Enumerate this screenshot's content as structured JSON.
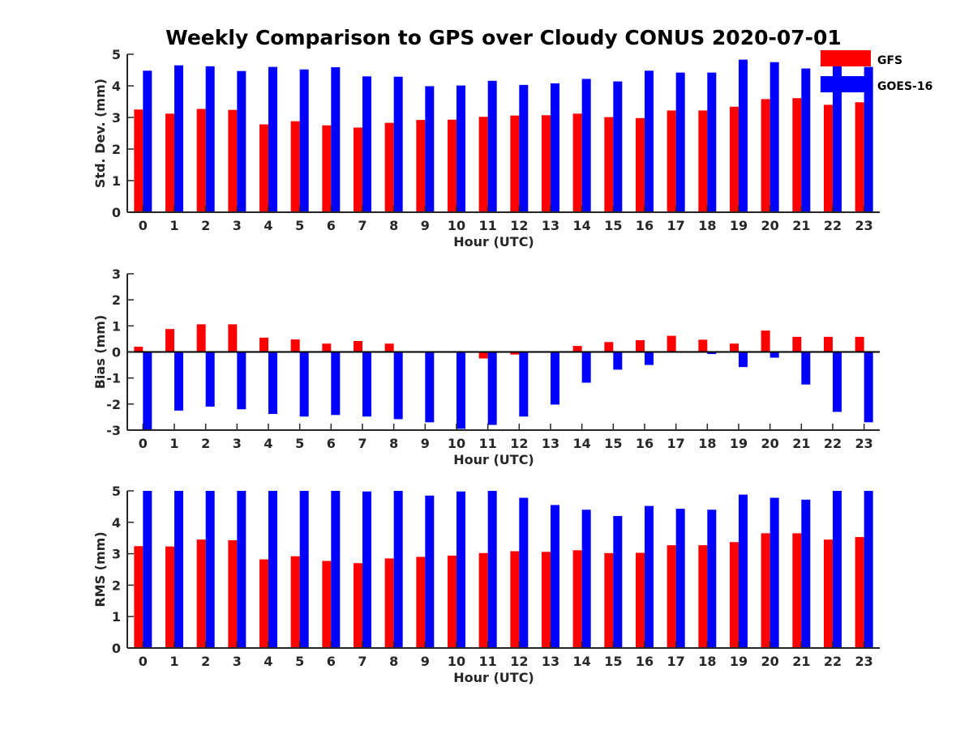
{
  "chart_data": {
    "type": "bar",
    "title": "Weekly Comparison to GPS over Cloudy CONUS 2020-07-01",
    "legend": {
      "placement": "top-right",
      "entries": [
        {
          "label": "GFS",
          "color": "#ff0000"
        },
        {
          "label": "GOES-16",
          "color": "#0000ff"
        }
      ]
    },
    "categories": [
      "0",
      "1",
      "2",
      "3",
      "4",
      "5",
      "6",
      "7",
      "8",
      "9",
      "10",
      "11",
      "12",
      "13",
      "14",
      "15",
      "16",
      "17",
      "18",
      "19",
      "20",
      "21",
      "22",
      "23"
    ],
    "panels": [
      {
        "xlabel": "Hour (UTC)",
        "ylabel": "Std. Dev. (mm)",
        "ylim": [
          0,
          5
        ],
        "yticks": [
          "0",
          "1",
          "2",
          "3",
          "4",
          "5"
        ],
        "series": [
          {
            "name": "GFS",
            "color": "#ff0000",
            "values": [
              3.25,
              3.12,
              3.27,
              3.24,
              2.78,
              2.88,
              2.75,
              2.68,
              2.83,
              2.92,
              2.93,
              3.02,
              3.06,
              3.07,
              3.12,
              3.01,
              2.98,
              3.22,
              3.22,
              3.34,
              3.58,
              3.61,
              3.4,
              3.48
            ]
          },
          {
            "name": "GOES-16",
            "color": "#0000ff",
            "values": [
              4.48,
              4.65,
              4.62,
              4.47,
              4.6,
              4.52,
              4.59,
              4.3,
              4.29,
              3.99,
              4.01,
              4.16,
              4.03,
              4.08,
              4.22,
              4.14,
              4.48,
              4.42,
              4.42,
              4.83,
              4.75,
              4.55,
              4.63,
              4.6
            ]
          }
        ]
      },
      {
        "xlabel": "Hour (UTC)",
        "ylabel": "Bias (mm)",
        "ylim": [
          -3,
          3
        ],
        "yticks": [
          "-3",
          "-2",
          "-1",
          "0",
          "1",
          "2",
          "3"
        ],
        "series": [
          {
            "name": "GFS",
            "color": "#ff0000",
            "values": [
              0.2,
              0.88,
              1.06,
              1.06,
              0.55,
              0.48,
              0.32,
              0.42,
              0.32,
              0.03,
              -0.03,
              -0.25,
              -0.1,
              0.03,
              0.23,
              0.38,
              0.45,
              0.62,
              0.47,
              0.32,
              0.82,
              0.58,
              0.58,
              0.58
            ]
          },
          {
            "name": "GOES-16",
            "color": "#0000ff",
            "values": [
              -3.0,
              -2.25,
              -2.1,
              -2.2,
              -2.38,
              -2.48,
              -2.42,
              -2.48,
              -2.58,
              -2.7,
              -2.95,
              -2.8,
              -2.48,
              -2.02,
              -1.18,
              -0.68,
              -0.5,
              0.0,
              -0.08,
              -0.58,
              -0.22,
              -1.25,
              -2.3,
              -2.7
            ]
          }
        ]
      },
      {
        "xlabel": "Hour (UTC)",
        "ylabel": "RMS (mm)",
        "ylim": [
          0,
          5
        ],
        "yticks": [
          "0",
          "1",
          "2",
          "3",
          "4",
          "5"
        ],
        "series": [
          {
            "name": "GFS",
            "color": "#ff0000",
            "values": [
              3.24,
              3.23,
              3.45,
              3.43,
              2.82,
              2.92,
              2.77,
              2.7,
              2.85,
              2.9,
              2.94,
              3.02,
              3.08,
              3.06,
              3.11,
              3.02,
              3.03,
              3.27,
              3.27,
              3.37,
              3.65,
              3.65,
              3.45,
              3.53
            ]
          },
          {
            "name": "GOES-16",
            "color": "#0000ff",
            "values": [
              5.0,
              5.0,
              5.0,
              5.0,
              5.0,
              5.0,
              5.0,
              4.98,
              5.0,
              4.85,
              4.98,
              5.0,
              4.78,
              4.55,
              4.4,
              4.2,
              4.52,
              4.43,
              4.4,
              4.88,
              4.78,
              4.72,
              5.0,
              5.0
            ]
          }
        ]
      }
    ]
  }
}
